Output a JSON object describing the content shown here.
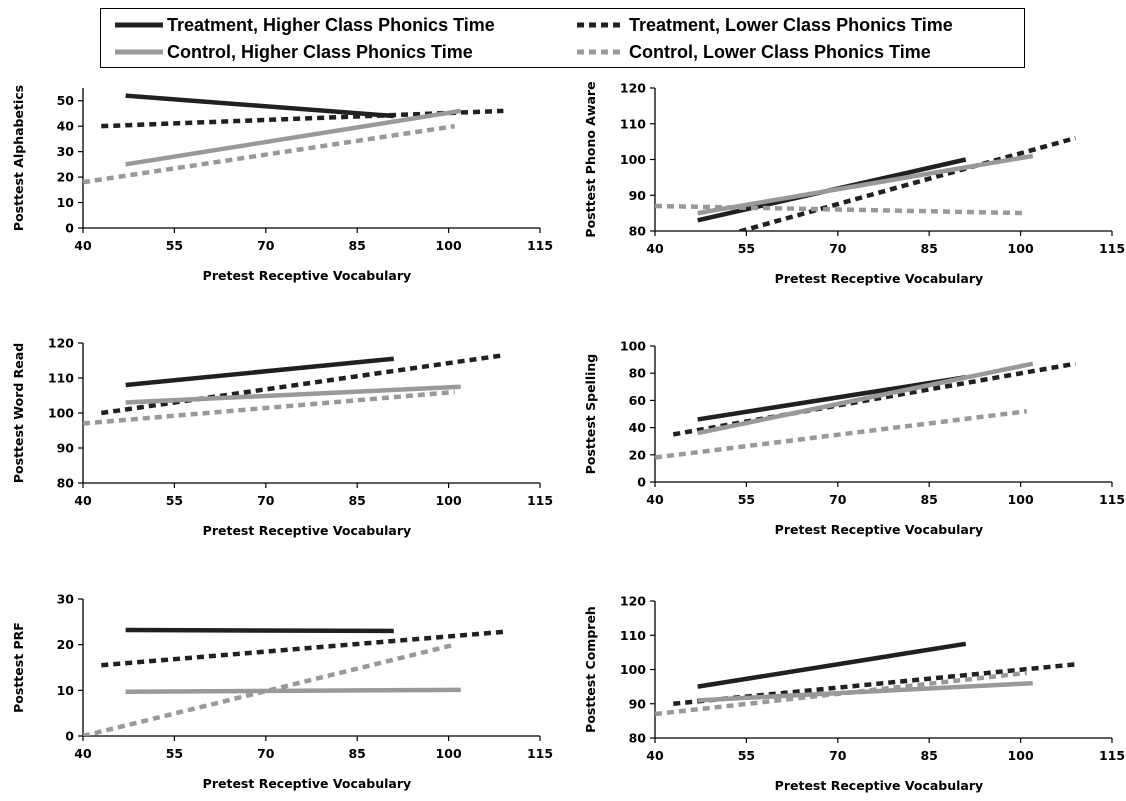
{
  "legend": [
    {
      "label": "Treatment, Higher Class Phonics Time",
      "color": "#231f20",
      "dash": "solid"
    },
    {
      "label": "Treatment, Lower Class Phonics Time",
      "color": "#231f20",
      "dash": "dashed"
    },
    {
      "label": "Control, Higher Class Phonics Time",
      "color": "#999999",
      "dash": "solid"
    },
    {
      "label": "Control, Lower Class Phonics Time",
      "color": "#999999",
      "dash": "dashed"
    }
  ],
  "chart_data": [
    {
      "type": "line",
      "ylabel": "Posttest Alphabetics",
      "xlabel": "Pretest Receptive Vocabulary",
      "xlim": [
        40,
        115
      ],
      "xticks": [
        40,
        55,
        70,
        85,
        100,
        115
      ],
      "ylim": [
        0,
        55
      ],
      "yticks": [
        0,
        10,
        20,
        30,
        40,
        50
      ],
      "series": [
        {
          "name": "Treatment, Higher Class Phonics Time",
          "x": [
            47,
            91
          ],
          "y": [
            52,
            44
          ]
        },
        {
          "name": "Treatment, Lower Class Phonics Time",
          "x": [
            43,
            109
          ],
          "y": [
            40,
            46
          ]
        },
        {
          "name": "Control, Higher Class Phonics Time",
          "x": [
            47,
            102
          ],
          "y": [
            25,
            46
          ]
        },
        {
          "name": "Control, Lower Class Phonics Time",
          "x": [
            40,
            101
          ],
          "y": [
            18,
            40
          ]
        }
      ]
    },
    {
      "type": "line",
      "ylabel": "Posttest Phono Aware",
      "xlabel": "Pretest Receptive Vocabulary",
      "xlim": [
        40,
        115
      ],
      "xticks": [
        40,
        55,
        70,
        85,
        100,
        115
      ],
      "ylim": [
        80,
        120
      ],
      "yticks": [
        80,
        90,
        100,
        110,
        120
      ],
      "series": [
        {
          "name": "Treatment, Higher Class Phonics Time",
          "x": [
            47,
            91
          ],
          "y": [
            83,
            100
          ]
        },
        {
          "name": "Treatment, Lower Class Phonics Time",
          "x": [
            52,
            109
          ],
          "y": [
            79,
            106
          ]
        },
        {
          "name": "Control, Higher Class Phonics Time",
          "x": [
            47,
            102
          ],
          "y": [
            85,
            101
          ]
        },
        {
          "name": "Control, Lower Class Phonics Time",
          "x": [
            40,
            101
          ],
          "y": [
            87,
            85
          ]
        }
      ]
    },
    {
      "type": "line",
      "ylabel": "Posttest Word Read",
      "xlabel": "Pretest Receptive Vocabulary",
      "xlim": [
        40,
        115
      ],
      "xticks": [
        40,
        55,
        70,
        85,
        100,
        115
      ],
      "ylim": [
        80,
        120
      ],
      "yticks": [
        80,
        90,
        100,
        110,
        120
      ],
      "series": [
        {
          "name": "Treatment, Higher Class Phonics Time",
          "x": [
            47,
            91
          ],
          "y": [
            108,
            115.5
          ]
        },
        {
          "name": "Treatment, Lower Class Phonics Time",
          "x": [
            43,
            109
          ],
          "y": [
            100,
            116.5
          ]
        },
        {
          "name": "Control, Higher Class Phonics Time",
          "x": [
            47,
            102
          ],
          "y": [
            103,
            107.5
          ]
        },
        {
          "name": "Control, Lower Class Phonics Time",
          "x": [
            40,
            101
          ],
          "y": [
            97,
            106
          ]
        }
      ]
    },
    {
      "type": "line",
      "ylabel": "Posttest Spelling",
      "xlabel": "Pretest Receptive Vocabulary",
      "xlim": [
        40,
        115
      ],
      "xticks": [
        40,
        55,
        70,
        85,
        100,
        115
      ],
      "ylim": [
        0,
        100
      ],
      "yticks": [
        0,
        20,
        40,
        60,
        80,
        100
      ],
      "series": [
        {
          "name": "Treatment, Higher Class Phonics Time",
          "x": [
            47,
            91
          ],
          "y": [
            46,
            77
          ]
        },
        {
          "name": "Treatment, Lower Class Phonics Time",
          "x": [
            43,
            109
          ],
          "y": [
            35,
            87
          ]
        },
        {
          "name": "Control, Higher Class Phonics Time",
          "x": [
            47,
            102
          ],
          "y": [
            36,
            87
          ]
        },
        {
          "name": "Control, Lower Class Phonics Time",
          "x": [
            40,
            101
          ],
          "y": [
            18,
            52
          ]
        }
      ]
    },
    {
      "type": "line",
      "ylabel": "Posttest PRF",
      "xlabel": "Pretest Receptive Vocabulary",
      "xlim": [
        40,
        115
      ],
      "xticks": [
        40,
        55,
        70,
        85,
        100,
        115
      ],
      "ylim": [
        0,
        30
      ],
      "yticks": [
        0,
        10,
        20,
        30
      ],
      "series": [
        {
          "name": "Treatment, Higher Class Phonics Time",
          "x": [
            47,
            91
          ],
          "y": [
            23.2,
            23
          ]
        },
        {
          "name": "Treatment, Lower Class Phonics Time",
          "x": [
            43,
            109
          ],
          "y": [
            15.5,
            22.8
          ]
        },
        {
          "name": "Control, Higher Class Phonics Time",
          "x": [
            47,
            102
          ],
          "y": [
            9.7,
            10.1
          ]
        },
        {
          "name": "Control, Lower Class Phonics Time",
          "x": [
            40,
            101
          ],
          "y": [
            0,
            20
          ]
        }
      ]
    },
    {
      "type": "line",
      "ylabel": "Posttest Compreh",
      "xlabel": "Pretest Receptive Vocabulary",
      "xlim": [
        40,
        115
      ],
      "xticks": [
        40,
        55,
        70,
        85,
        100,
        115
      ],
      "ylim": [
        80,
        120
      ],
      "yticks": [
        80,
        90,
        100,
        110,
        120
      ],
      "series": [
        {
          "name": "Treatment, Higher Class Phonics Time",
          "x": [
            47,
            91
          ],
          "y": [
            95,
            107.5
          ]
        },
        {
          "name": "Treatment, Lower Class Phonics Time",
          "x": [
            43,
            109
          ],
          "y": [
            90,
            101.5
          ]
        },
        {
          "name": "Control, Higher Class Phonics Time",
          "x": [
            47,
            102
          ],
          "y": [
            91,
            96
          ]
        },
        {
          "name": "Control, Lower Class Phonics Time",
          "x": [
            40,
            101
          ],
          "y": [
            87,
            99
          ]
        }
      ]
    }
  ]
}
